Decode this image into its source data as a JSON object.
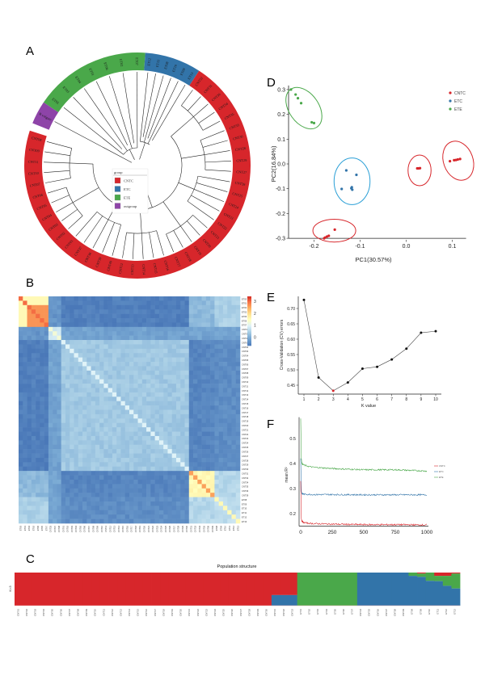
{
  "panels": {
    "A": "A",
    "B": "B",
    "C": "C",
    "D": "D",
    "E": "E",
    "F": "F"
  },
  "colors": {
    "CNTC": "#d7262b",
    "ETC": "#3274a9",
    "ETE": "#4aa84a",
    "outgroup": "#8e44a8",
    "ellipse_ETC": "#2a9fd6",
    "min_k": "#d7262b"
  },
  "tree": {
    "legend_title": "group",
    "legend": [
      {
        "label": "CNTC",
        "group": "CNTC"
      },
      {
        "label": "ETC",
        "group": "ETC"
      },
      {
        "label": "ETE",
        "group": "ETE"
      },
      {
        "label": "outgroup",
        "group": "outgroup"
      }
    ],
    "outgroup_tips": [
      "B vulgare"
    ],
    "ETE_tips": [
      "ET05",
      "ET03",
      "ET04",
      "ET01",
      "ET06",
      "ET02",
      "ET07"
    ],
    "ETC_tips": [
      "ET12",
      "ET11",
      "ET08",
      "ET10",
      "ET09",
      "ET13"
    ],
    "CNTC_tips": [
      "CNT32",
      "CNT31",
      "CNT36",
      "CNT34",
      "CNT35",
      "CNT33",
      "CNT30",
      "CNT28",
      "CNT29",
      "CNT27",
      "CNT26",
      "CNT25",
      "CNT24",
      "CNT23",
      "CNT22",
      "CNT21",
      "CNT20",
      "CNT19",
      "CNT18",
      "CNT17",
      "CNT16",
      "CNT15",
      "CNT14",
      "CNT13",
      "CNT12",
      "CNT40",
      "CNT39",
      "CNT38",
      "CNT37",
      "CNT01",
      "CNT02",
      "CNT03",
      "CNT04",
      "CNT05",
      "CNT06",
      "CNT07",
      "CNT10",
      "CNT11",
      "CNT09",
      "CNT08"
    ]
  },
  "heatmap": {
    "labels": [
      "ET03",
      "ET01",
      "ET04",
      "ET02",
      "ET06",
      "ET05",
      "ET07",
      "CNT33",
      "CNT37",
      "CNT38",
      "CNT01",
      "CNT02",
      "CNT03",
      "CNT04",
      "CNT05",
      "CNT06",
      "CNT07",
      "CNT08",
      "CNT09",
      "CNT10",
      "CNT11",
      "CNT12",
      "CNT13",
      "CNT14",
      "CNT15",
      "CNT16",
      "CNT17",
      "CNT18",
      "CNT19",
      "CNT20",
      "CNT21",
      "CNT22",
      "CNT23",
      "CNT24",
      "CNT25",
      "CNT26",
      "CNT27",
      "CNT28",
      "CNT29",
      "CNT30",
      "CNT31",
      "CNT32",
      "CNT34",
      "CNT35",
      "CNT36",
      "CNT39",
      "ET08",
      "ET09",
      "ET10",
      "ET11",
      "ET12",
      "ET13"
    ],
    "block_sizes": [
      7,
      3,
      30,
      6,
      6
    ],
    "block_values": [
      [
        2.0,
        -0.3,
        -0.6,
        0.2,
        0.5
      ],
      [
        -0.3,
        0.9,
        -0.1,
        -0.1,
        -0.1
      ],
      [
        -0.6,
        -0.1,
        0.4,
        -0.5,
        -0.4
      ],
      [
        0.2,
        -0.1,
        -0.5,
        1.6,
        0.6
      ],
      [
        0.5,
        -0.1,
        -0.4,
        0.6,
        0.7
      ]
    ],
    "diagonal_values": [
      3.0,
      1.3,
      1.0,
      2.6,
      1.6
    ],
    "scale_ticks": [
      "3",
      "2",
      "1",
      "0"
    ],
    "scale_range": [
      -0.7,
      3.4
    ]
  },
  "structure": {
    "title": "Population structure",
    "k_label": "K=3",
    "samples": [
      "CNT01",
      "CNT02",
      "CNT03",
      "CNT04",
      "CNT05",
      "CNT06",
      "CNT07",
      "CNT08",
      "CNT09",
      "CNT10",
      "CNT11",
      "CNT12",
      "CNT13",
      "CNT14",
      "CNT15",
      "CNT16",
      "CNT17",
      "CNT18",
      "CNT19",
      "CNT20",
      "CNT21",
      "CNT22",
      "CNT23",
      "CNT24",
      "CNT25",
      "CNT26",
      "CNT27",
      "CNT28",
      "CNT29",
      "CNT30",
      "CNT31",
      "CNT32",
      "CNT33",
      "ET01",
      "ET02",
      "ET03",
      "ET04",
      "ET05",
      "ET06",
      "ET07",
      "CNT34",
      "CNT35",
      "CNT36",
      "CNT37",
      "CNT38",
      "CNT39",
      "ET08",
      "ET09",
      "ET10",
      "ET11",
      "ET12",
      "ET13"
    ],
    "ancestry_order": [
      "CNTC",
      "ETE",
      "ETC"
    ]
  },
  "chart_data": [
    {
      "panel": "C",
      "type": "bar",
      "stacked": true,
      "title": "Population structure",
      "ylabel": "K=3",
      "series_names": [
        "CNTC",
        "ETE",
        "ETC"
      ],
      "proportions": [
        [
          1,
          0,
          0
        ],
        [
          1,
          0,
          0
        ],
        [
          1,
          0,
          0
        ],
        [
          1,
          0,
          0
        ],
        [
          1,
          0,
          0
        ],
        [
          1,
          0,
          0
        ],
        [
          1,
          0,
          0
        ],
        [
          1,
          0,
          0
        ],
        [
          1,
          0,
          0
        ],
        [
          1,
          0,
          0
        ],
        [
          1,
          0,
          0
        ],
        [
          1,
          0,
          0
        ],
        [
          1,
          0,
          0
        ],
        [
          1,
          0,
          0
        ],
        [
          1,
          0,
          0
        ],
        [
          1,
          0,
          0
        ],
        [
          1,
          0,
          0
        ],
        [
          1,
          0,
          0
        ],
        [
          1,
          0,
          0
        ],
        [
          1,
          0,
          0
        ],
        [
          1,
          0,
          0
        ],
        [
          1,
          0,
          0
        ],
        [
          1,
          0,
          0
        ],
        [
          1,
          0,
          0
        ],
        [
          1,
          0,
          0
        ],
        [
          1,
          0,
          0
        ],
        [
          1,
          0,
          0
        ],
        [
          1,
          0,
          0
        ],
        [
          1,
          0,
          0
        ],
        [
          1,
          0,
          0
        ],
        [
          0.68,
          0,
          0.32
        ],
        [
          0.68,
          0,
          0.32
        ],
        [
          0.68,
          0,
          0.32
        ],
        [
          0,
          1,
          0
        ],
        [
          0,
          1,
          0
        ],
        [
          0,
          1,
          0
        ],
        [
          0,
          1,
          0
        ],
        [
          0,
          1,
          0
        ],
        [
          0,
          1,
          0
        ],
        [
          0,
          1,
          0
        ],
        [
          0,
          0,
          1
        ],
        [
          0,
          0,
          1
        ],
        [
          0,
          0,
          1
        ],
        [
          0,
          0,
          1
        ],
        [
          0,
          0,
          1
        ],
        [
          0,
          0,
          1
        ],
        [
          0,
          0.1,
          0.9
        ],
        [
          0.03,
          0.1,
          0.87
        ],
        [
          0,
          0.25,
          0.75
        ],
        [
          0.1,
          0.16,
          0.74
        ],
        [
          0.1,
          0.3,
          0.6
        ],
        [
          0.03,
          0.45,
          0.52
        ]
      ]
    },
    {
      "panel": "D",
      "type": "scatter",
      "xlabel": "PC1(30.57%)",
      "ylabel": "PC2(16.84%)",
      "xlim": [
        -0.255,
        0.13
      ],
      "ylim": [
        -0.3,
        0.31
      ],
      "xticks": [
        "-0.2",
        "-0.1",
        "0.0",
        "0.1"
      ],
      "xtick_values": [
        -0.2,
        -0.1,
        0,
        0.1
      ],
      "yticks": [
        "0.3",
        "0.2",
        "0.1",
        "0.0",
        "-0.1",
        "-0.2",
        "-0.3"
      ],
      "ytick_values": [
        0.3,
        0.2,
        0.1,
        0,
        -0.1,
        -0.2,
        -0.3
      ],
      "legend": [
        "CNTC",
        "ETC",
        "ETE"
      ],
      "legend_position": "top-right",
      "series": [
        {
          "name": "ETE",
          "points": [
            [
              -0.25,
              0.3
            ],
            [
              -0.24,
              0.28
            ],
            [
              -0.235,
              0.265
            ],
            [
              -0.228,
              0.245
            ],
            [
              -0.205,
              0.168
            ],
            [
              -0.2,
              0.165
            ]
          ]
        },
        {
          "name": "ETC",
          "points": [
            [
              -0.13,
              -0.026
            ],
            [
              -0.108,
              -0.044
            ],
            [
              -0.14,
              -0.101
            ],
            [
              -0.118,
              -0.094
            ],
            [
              -0.117,
              -0.104
            ],
            [
              -0.119,
              -0.098
            ]
          ]
        },
        {
          "name": "CNTC",
          "points": [
            [
              0.024,
              -0.018
            ],
            [
              0.027,
              -0.018
            ],
            [
              0.03,
              -0.017
            ],
            [
              0.095,
              0.011
            ],
            [
              0.104,
              0.015
            ],
            [
              0.108,
              0.016
            ],
            [
              0.112,
              0.018
            ],
            [
              0.117,
              0.02
            ],
            [
              -0.155,
              -0.265
            ],
            [
              -0.168,
              -0.29
            ],
            [
              -0.172,
              -0.293
            ],
            [
              -0.176,
              -0.297
            ],
            [
              -0.178,
              -0.3
            ]
          ]
        }
      ],
      "ellipses": [
        {
          "group": "ETE",
          "cx": -0.222,
          "cy": 0.225,
          "rx": 0.05,
          "ry": 0.06,
          "angle": 55
        },
        {
          "group": "ETC",
          "cx": -0.1175,
          "cy": -0.07,
          "rx": 0.039,
          "ry": 0.094,
          "angle": 0
        },
        {
          "group": "CNTC",
          "cx": 0.029,
          "cy": -0.026,
          "rx": 0.025,
          "ry": 0.062,
          "angle": 0
        },
        {
          "group": "CNTC",
          "cx": 0.113,
          "cy": 0.013,
          "rx": 0.032,
          "ry": 0.081,
          "angle": -20
        },
        {
          "group": "CNTC",
          "cx": -0.156,
          "cy": -0.269,
          "rx": 0.0465,
          "ry": 0.046,
          "angle": 0
        }
      ]
    },
    {
      "panel": "E",
      "type": "line",
      "xlabel": "K value",
      "ylabel": "Cross-Validation (CV) errors",
      "x": [
        1,
        2,
        3,
        4,
        5,
        6,
        7,
        8,
        9,
        10
      ],
      "values": [
        0.728,
        0.475,
        0.432,
        0.459,
        0.504,
        0.51,
        0.534,
        0.569,
        0.621,
        0.626
      ],
      "highlight_x": 3,
      "yticks": [
        "0.45",
        "0.50",
        "0.55",
        "0.60",
        "0.65",
        "0.70"
      ],
      "ytick_values": [
        0.45,
        0.5,
        0.55,
        0.6,
        0.65,
        0.7
      ],
      "ylim": [
        0.42,
        0.735
      ]
    },
    {
      "panel": "F",
      "type": "line",
      "ylabel": "mean R²",
      "xlim": [
        0,
        1000
      ],
      "ylim": [
        0.15,
        0.585
      ],
      "xticks": [
        "0",
        "250",
        "500",
        "750",
        "1000"
      ],
      "xtick_values": [
        0,
        250,
        500,
        750,
        1000
      ],
      "yticks": [
        "0.5",
        "0.4",
        "0.3",
        "0.2"
      ],
      "ytick_values": [
        0.5,
        0.4,
        0.3,
        0.2
      ],
      "legend": [
        "CNTC",
        "ETC",
        "ETE"
      ],
      "legend_position": "right",
      "x": [
        0,
        5,
        10,
        20,
        50,
        100,
        250,
        500,
        750,
        1000
      ],
      "series": [
        {
          "name": "ETE",
          "values": [
            0.58,
            0.42,
            0.4,
            0.395,
            0.39,
            0.385,
            0.38,
            0.375,
            0.375,
            0.37
          ]
        },
        {
          "name": "ETC",
          "values": [
            0.42,
            0.29,
            0.28,
            0.278,
            0.277,
            0.276,
            0.276,
            0.275,
            0.275,
            0.275
          ]
        },
        {
          "name": "CNTC",
          "values": [
            0.33,
            0.18,
            0.17,
            0.165,
            0.162,
            0.16,
            0.158,
            0.156,
            0.156,
            0.155
          ]
        }
      ]
    }
  ]
}
